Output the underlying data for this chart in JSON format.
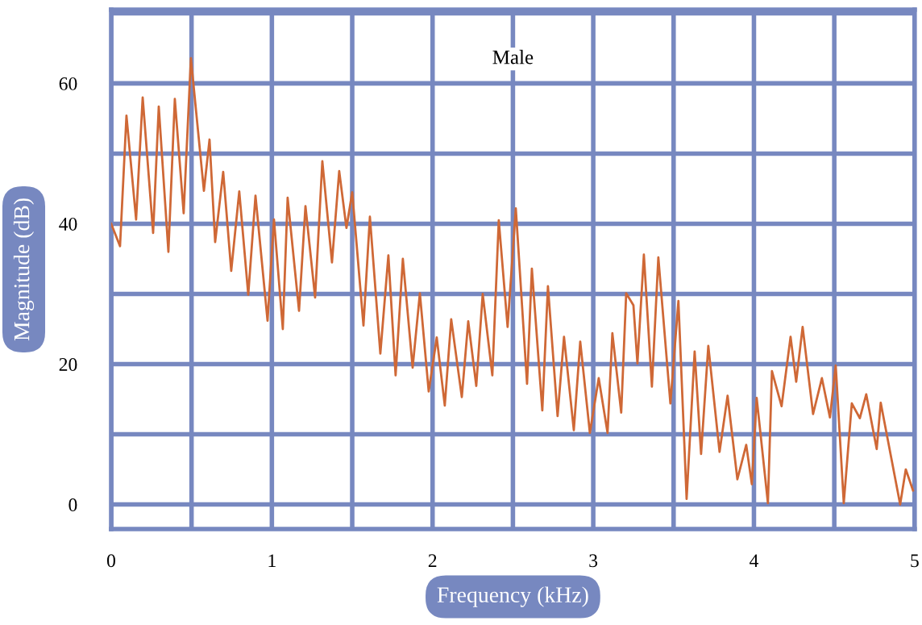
{
  "chart_data": {
    "type": "line",
    "title": "Male",
    "xlabel": "Frequency (kHz)",
    "ylabel": "Magnitude (dB)",
    "x": [
      0.0,
      0.055,
      0.095,
      0.155,
      0.196,
      0.261,
      0.296,
      0.356,
      0.396,
      0.451,
      0.496,
      0.577,
      0.612,
      0.647,
      0.697,
      0.747,
      0.797,
      0.853,
      0.898,
      0.973,
      1.013,
      1.068,
      1.098,
      1.169,
      1.209,
      1.269,
      1.314,
      1.374,
      1.419,
      1.464,
      1.5,
      1.57,
      1.61,
      1.675,
      1.725,
      1.77,
      1.815,
      1.876,
      1.921,
      1.976,
      2.026,
      2.076,
      2.116,
      2.182,
      2.222,
      2.272,
      2.312,
      2.372,
      2.412,
      2.467,
      2.518,
      2.588,
      2.618,
      2.683,
      2.718,
      2.778,
      2.818,
      2.879,
      2.919,
      2.979,
      3.034,
      3.089,
      3.119,
      3.174,
      3.205,
      3.25,
      3.275,
      3.315,
      3.365,
      3.405,
      3.48,
      3.53,
      3.581,
      3.631,
      3.671,
      3.716,
      3.786,
      3.836,
      3.897,
      3.952,
      3.987,
      4.017,
      4.087,
      4.112,
      4.172,
      4.228,
      4.263,
      4.303,
      4.368,
      4.423,
      4.473,
      4.509,
      4.559,
      4.609,
      4.659,
      4.699,
      4.764,
      4.789,
      4.91,
      4.945,
      4.99
    ],
    "series": [
      {
        "color": "#cf6836",
        "values": [
          40,
          36.8,
          55.4,
          40.6,
          58,
          38.7,
          56.7,
          36,
          57.8,
          41.5,
          63.6,
          44.7,
          52,
          37.4,
          47.4,
          33.3,
          44.6,
          29.9,
          44,
          26.2,
          40.6,
          25,
          43.7,
          27.6,
          42.5,
          29.5,
          48.9,
          34.5,
          47.5,
          39.4,
          44.5,
          25.5,
          41,
          21.5,
          35.5,
          18.4,
          35,
          19.5,
          30.1,
          16.1,
          23.8,
          14.1,
          26.4,
          15.3,
          26.1,
          16.9,
          30,
          18.4,
          40.5,
          25.3,
          42.2,
          17.2,
          33.6,
          13.4,
          31.1,
          12.6,
          23.9,
          10.6,
          23.2,
          10.2,
          18,
          10.2,
          24.4,
          13.1,
          30.1,
          28.4,
          20.1,
          35.6,
          16.8,
          35.2,
          14.4,
          29,
          0.8,
          21.8,
          7.2,
          22.6,
          7.5,
          15.5,
          3.6,
          8.5,
          2.9,
          15.2,
          0.2,
          19,
          14,
          23.9,
          17.5,
          25.3,
          12.9,
          18,
          12.4,
          19.8,
          0.2,
          14.4,
          12.3,
          15.7,
          7.9,
          14.5,
          0,
          5,
          2
        ]
      }
    ],
    "xlim": [
      0,
      5
    ],
    "ylim": [
      -3.5,
      70.5
    ],
    "xticks": [
      0,
      {
        "value": 0.5,
        "label": null
      },
      1,
      {
        "value": 1.5,
        "label": null
      },
      2,
      {
        "value": 2.5,
        "label": null
      },
      3,
      {
        "value": 3.5,
        "label": null
      },
      4,
      {
        "value": 4.5,
        "label": null
      },
      5
    ],
    "yticks": [
      0,
      {
        "value": 10,
        "label": null
      },
      20,
      {
        "value": 30,
        "label": null
      },
      40,
      {
        "value": 50,
        "label": null
      },
      60,
      {
        "value": 70,
        "label": null
      }
    ],
    "grid": true,
    "legend": false
  }
}
